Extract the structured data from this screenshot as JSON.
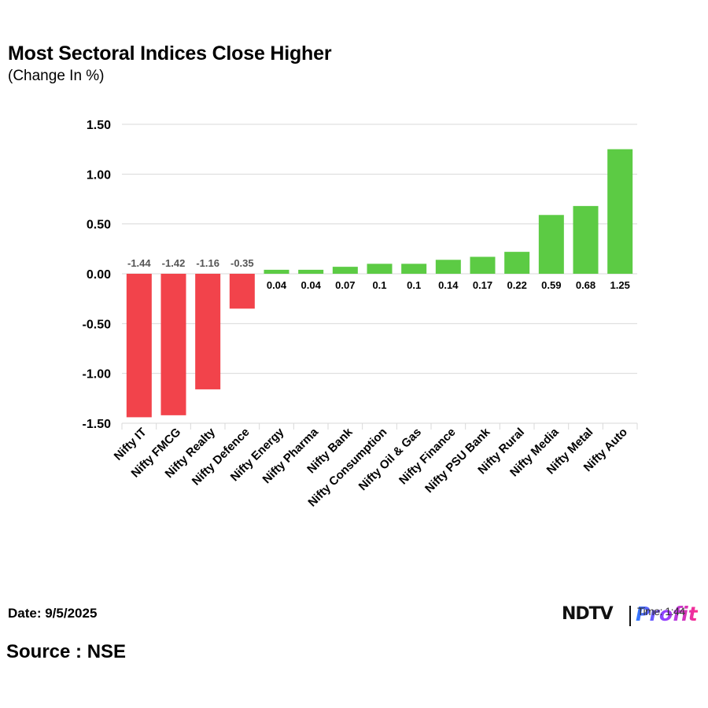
{
  "header": {
    "title": "Most Sectoral Indices Close Higher",
    "subtitle": "(Change In %)"
  },
  "footer": {
    "date": "Date: 9/5/2025",
    "source": "Source : NSE"
  },
  "logo": {
    "brand": "NDTV",
    "product": "Profit",
    "overlay_text": "Time: 1:44"
  },
  "colors": {
    "negative": "#f2434b",
    "positive": "#5ccb44",
    "grid": "#d9d9d9",
    "axis_text": "#000000",
    "negative_label": "#555555",
    "positive_label": "#000000"
  },
  "chart_data": {
    "type": "bar",
    "title": "Most Sectoral Indices Close Higher",
    "subtitle": "(Change In %)",
    "xlabel": "",
    "ylabel": "",
    "categories": [
      "Nifty IT",
      "Nifty FMCG",
      "Nifty Realty",
      "Nifty Defence",
      "Nifty Energy",
      "Nifty Pharma",
      "Nifty Bank",
      "Nifty Consumption",
      "Nifty Oil & Gas",
      "Nifty Finance",
      "Nifty PSU Bank",
      "Nifty Rural",
      "Nifty Media",
      "Nifty Metal",
      "Nifty Auto"
    ],
    "values": [
      -1.44,
      -1.42,
      -1.16,
      -0.35,
      0.04,
      0.04,
      0.07,
      0.1,
      0.1,
      0.14,
      0.17,
      0.22,
      0.59,
      0.68,
      1.25
    ],
    "data_labels": [
      "-1.44",
      "-1.42",
      "-1.16",
      "-0.35",
      "0.04",
      "0.04",
      "0.07",
      "0.1",
      "0.1",
      "0.14",
      "0.17",
      "0.22",
      "0.59",
      "0.68",
      "1.25"
    ],
    "ylim": [
      -1.5,
      1.5
    ],
    "yticks": [
      1.5,
      1.0,
      0.5,
      0.0,
      -0.5,
      -1.0,
      -1.5
    ],
    "ytick_labels": [
      "1.50",
      "1.00",
      "0.50",
      "0.00",
      "-0.50",
      "-1.00",
      "-1.50"
    ],
    "grid": true,
    "legend": "none"
  }
}
